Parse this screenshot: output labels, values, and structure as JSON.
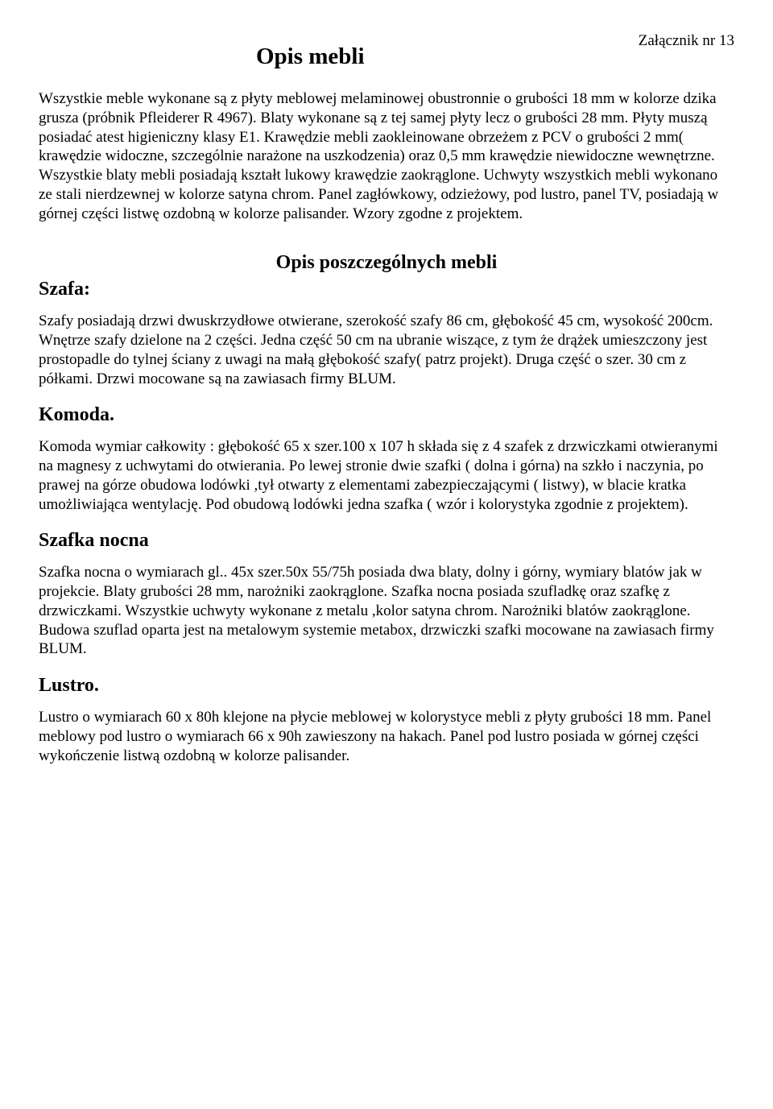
{
  "attachment_label": "Załącznik nr 13",
  "main_title": "Opis mebli",
  "intro_paragraph": "Wszystkie meble wykonane są z płyty meblowej melaminowej obustronnie o grubości 18 mm w kolorze dzika grusza (próbnik Pfleiderer R 4967). Blaty wykonane są z tej samej płyty lecz o grubości 28 mm. Płyty muszą posiadać atest higieniczny klasy E1. Krawędzie mebli zaokleinowane obrzeżem z PCV o grubości 2 mm( krawędzie widoczne, szczególnie narażone na uszkodzenia) oraz 0,5 mm krawędzie niewidoczne wewnętrzne. Wszystkie blaty mebli posiadają kształt lukowy krawędzie zaokrąglone. Uchwyty wszystkich mebli wykonano ze stali nierdzewnej w kolorze satyna chrom. Panel zagłówkowy, odzieżowy, pod lustro, panel TV, posiadają w górnej części listwę ozdobną w kolorze palisander. Wzory zgodne z projektem.",
  "sub_title": "Opis poszczególnych mebli",
  "sections": [
    {
      "heading": "Szafa:",
      "paragraph": "Szafy posiadają drzwi dwuskrzydłowe otwierane, szerokość szafy 86 cm, głębokość 45 cm, wysokość 200cm. Wnętrze szafy dzielone na 2 części. Jedna część 50 cm na ubranie wiszące, z tym że drążek umieszczony jest prostopadle do tylnej ściany z uwagi na małą głębokość szafy( patrz projekt). Druga część o szer. 30 cm z półkami. Drzwi mocowane są na zawiasach firmy BLUM."
    },
    {
      "heading": "Komoda.",
      "paragraph": "Komoda wymiar całkowity : głębokość 65 x szer.100  x 107 h składa się z  4 szafek z drzwiczkami otwieranymi na magnesy z uchwytami do otwierania. Po lewej stronie dwie szafki ( dolna i górna) na szkło i naczynia, po prawej na górze obudowa lodówki ,tył otwarty z elementami zabezpieczającymi ( listwy), w blacie kratka umożliwiająca wentylację. Pod obudową lodówki jedna  szafka ( wzór i kolorystyka zgodnie z projektem)."
    },
    {
      "heading": "Szafka nocna",
      "paragraph": "Szafka nocna o wymiarach gl.. 45x szer.50x 55/75h posiada dwa blaty, dolny i górny, wymiary blatów jak w projekcie. Blaty grubości 28 mm, narożniki zaokrąglone. Szafka nocna posiada szufladkę oraz szafkę z drzwiczkami. Wszystkie uchwyty wykonane z metalu ,kolor satyna chrom. Narożniki blatów zaokrąglone. Budowa szuflad oparta jest na metalowym systemie metabox, drzwiczki szafki mocowane na zawiasach firmy BLUM."
    },
    {
      "heading": "Lustro.",
      "paragraph": "Lustro o wymiarach 60 x 80h klejone na płycie meblowej w kolorystyce mebli z płyty grubości 18 mm. Panel meblowy pod lustro o wymiarach 66 x 90h zawieszony na hakach. Panel pod lustro posiada w górnej części wykończenie listwą ozdobną w kolorze palisander."
    }
  ]
}
